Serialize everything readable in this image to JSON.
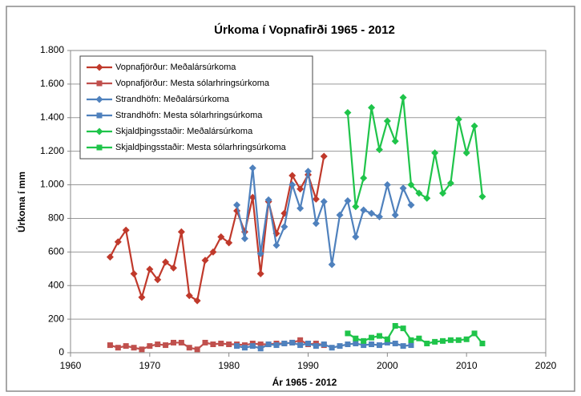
{
  "chart_data": {
    "type": "line",
    "title": "Úrkoma í Vopnafirði 1965 - 2012",
    "xlabel": "Ár 1965 - 2012",
    "ylabel": "Úrkoma í mm",
    "xlim": [
      1960,
      2020
    ],
    "xticks": [
      1960,
      1970,
      1980,
      1990,
      2000,
      2010,
      2020
    ],
    "ylim": [
      0,
      1800
    ],
    "yticks": [
      0,
      200,
      400,
      600,
      800,
      {
        "value": 1000,
        "label": "1.000"
      },
      {
        "value": 1200,
        "label": "1.200"
      },
      {
        "value": 1400,
        "label": "1.400"
      },
      {
        "value": 1600,
        "label": "1.600"
      },
      {
        "value": 1800,
        "label": "1.800"
      }
    ],
    "grid": true,
    "legend": "top-left",
    "series": [
      {
        "name": "Vopnafjörður: Meðalársúrkoma",
        "color": "#c0392b",
        "marker": "diamond",
        "x": [
          1965,
          1966,
          1967,
          1968,
          1969,
          1970,
          1971,
          1972,
          1973,
          1974,
          1975,
          1976,
          1977,
          1978,
          1979,
          1980,
          1981,
          1982,
          1983,
          1984,
          1985,
          1986,
          1987,
          1988,
          1989,
          1990,
          1991,
          1992
        ],
        "values": [
          570,
          660,
          730,
          470,
          330,
          497,
          435,
          540,
          505,
          720,
          340,
          310,
          550,
          600,
          690,
          655,
          845,
          720,
          925,
          470,
          900,
          710,
          830,
          1055,
          975,
          1060,
          915,
          1170
        ]
      },
      {
        "name": "Vopnafjörður: Mesta sólarhringsúrkoma",
        "color": "#c0504d",
        "marker": "square",
        "x": [
          1965,
          1966,
          1967,
          1968,
          1969,
          1970,
          1971,
          1972,
          1973,
          1974,
          1975,
          1976,
          1977,
          1978,
          1979,
          1980,
          1981,
          1982,
          1983,
          1984,
          1985,
          1986,
          1987,
          1988,
          1989,
          1990,
          1991,
          1992
        ],
        "values": [
          45,
          30,
          40,
          30,
          20,
          40,
          50,
          45,
          60,
          60,
          30,
          20,
          60,
          50,
          55,
          50,
          50,
          45,
          55,
          50,
          50,
          55,
          55,
          60,
          75,
          50,
          55,
          45
        ]
      },
      {
        "name": "Strandhöfn: Meðalársúrkoma",
        "color": "#4f81bd",
        "marker": "diamond",
        "x": [
          1981,
          1982,
          1983,
          1984,
          1985,
          1986,
          1987,
          1988,
          1989,
          1990,
          1991,
          1992,
          1993,
          1994,
          1995,
          1996,
          1997,
          1998,
          1999,
          2000,
          2001,
          2002,
          2003
        ],
        "values": [
          880,
          680,
          1100,
          590,
          910,
          640,
          750,
          1000,
          860,
          1080,
          770,
          900,
          525,
          820,
          905,
          690,
          850,
          830,
          810,
          1000,
          820,
          980,
          880
        ]
      },
      {
        "name": "Strandhöfn: Mesta sólarhringsúrkoma",
        "color": "#4f81bd",
        "marker": "square",
        "x": [
          1981,
          1982,
          1983,
          1984,
          1985,
          1986,
          1987,
          1988,
          1989,
          1990,
          1991,
          1992,
          1993,
          1994,
          1995,
          1996,
          1997,
          1998,
          1999,
          2000,
          2001,
          2002,
          2003
        ],
        "values": [
          40,
          30,
          40,
          25,
          50,
          45,
          55,
          60,
          45,
          55,
          40,
          50,
          30,
          40,
          50,
          55,
          45,
          50,
          45,
          60,
          55,
          40,
          45
        ]
      },
      {
        "name": "Skjaldþingsstaðir: Meðalársúrkoma",
        "color": "#1fc44a",
        "marker": "diamond",
        "x": [
          1995,
          1996,
          1997,
          1998,
          1999,
          2000,
          2001,
          2002,
          2003,
          2004,
          2005,
          2006,
          2007,
          2008,
          2009,
          2010,
          2011,
          2012
        ],
        "values": [
          1430,
          870,
          1040,
          1460,
          1210,
          1380,
          1260,
          1520,
          1000,
          950,
          920,
          1190,
          950,
          1010,
          1390,
          1190,
          1350,
          930
        ]
      },
      {
        "name": "Skjaldþingsstaðir: Mesta sólarhringsúrkoma",
        "color": "#1fc44a",
        "marker": "square",
        "x": [
          1995,
          1996,
          1997,
          1998,
          1999,
          2000,
          2001,
          2002,
          2003,
          2004,
          2005,
          2006,
          2007,
          2008,
          2009,
          2010,
          2011,
          2012
        ],
        "values": [
          115,
          85,
          70,
          90,
          100,
          80,
          160,
          145,
          75,
          85,
          55,
          65,
          70,
          75,
          75,
          80,
          115,
          55
        ]
      }
    ]
  }
}
